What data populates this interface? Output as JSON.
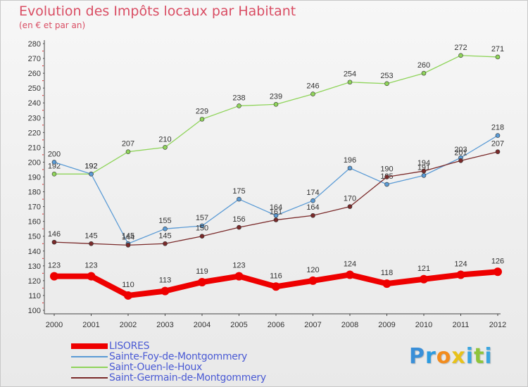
{
  "chart_data": {
    "type": "line",
    "title": "Evolution des Impôts locaux par Habitant",
    "subtitle": "(en € et par an)",
    "x": [
      "2000",
      "2001",
      "2002",
      "2003",
      "2004",
      "2005",
      "2006",
      "2007",
      "2008",
      "2009",
      "2010",
      "2011",
      "2012"
    ],
    "ylim": [
      100,
      280
    ],
    "yticks": [
      100,
      110,
      120,
      130,
      140,
      150,
      160,
      170,
      180,
      190,
      200,
      210,
      220,
      230,
      240,
      250,
      260,
      270,
      280
    ],
    "grid": false,
    "legend_placement": "bottom-left",
    "series": [
      {
        "name": "LISORES",
        "color": "#ee0000",
        "values": [
          123,
          123,
          110,
          113,
          119,
          123,
          116,
          120,
          124,
          118,
          121,
          124,
          126
        ]
      },
      {
        "name": "Sainte-Foy-de-Montgommery",
        "color": "#5b9bd5",
        "values": [
          200,
          192,
          145,
          155,
          157,
          175,
          164,
          174,
          196,
          185,
          191,
          203,
          218
        ]
      },
      {
        "name": "Saint-Ouen-le-Houx",
        "color": "#8fd45a",
        "values": [
          192,
          192,
          207,
          210,
          229,
          238,
          239,
          246,
          254,
          253,
          260,
          272,
          271
        ]
      },
      {
        "name": "Saint-Germain-de-Montgommery",
        "color": "#7a2a2a",
        "values": [
          146,
          145,
          144,
          145,
          150,
          156,
          161,
          164,
          170,
          190,
          194,
          201,
          207
        ]
      }
    ]
  },
  "brand": {
    "letters": [
      "P",
      "r",
      "o",
      "x",
      "i",
      "t",
      "i"
    ],
    "colors": [
      "#3a8fd8",
      "#2c9be0",
      "#f28c1e",
      "#e8c21a",
      "#3aa5e0",
      "#8fc43a",
      "#3aa5e0"
    ]
  }
}
